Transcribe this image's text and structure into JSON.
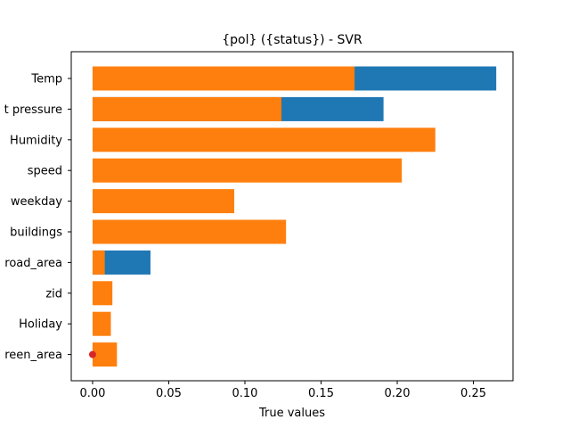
{
  "chart_data": {
    "type": "bar",
    "orientation": "horizontal",
    "title": "{pol} ({status}) - SVR",
    "xlabel": "True values",
    "ylabel": "",
    "xlim": [
      -0.014,
      0.276
    ],
    "xticks": [
      0.0,
      0.05,
      0.1,
      0.15,
      0.2,
      0.25
    ],
    "xtick_labels": [
      "0.00",
      "0.05",
      "0.10",
      "0.15",
      "0.20",
      "0.25"
    ],
    "grid": false,
    "categories": [
      "Temp",
      "t pressure",
      "Humidity",
      "speed",
      "weekday",
      "buildings",
      "road_area",
      "zid",
      "Holiday",
      "reen_area"
    ],
    "series": [
      {
        "color": "#1f77b4",
        "values": [
          0.265,
          0.191,
          0.0,
          0.0,
          0.0,
          0.0,
          0.038,
          0.0,
          0.0,
          0.0
        ]
      },
      {
        "color": "#ff7f0e",
        "values": [
          0.172,
          0.124,
          0.225,
          0.203,
          0.093,
          0.127,
          0.008,
          0.013,
          0.012,
          0.016
        ]
      }
    ],
    "markers": [
      {
        "category": "reen_area",
        "x": 0.0,
        "color": "#d62728"
      }
    ]
  }
}
